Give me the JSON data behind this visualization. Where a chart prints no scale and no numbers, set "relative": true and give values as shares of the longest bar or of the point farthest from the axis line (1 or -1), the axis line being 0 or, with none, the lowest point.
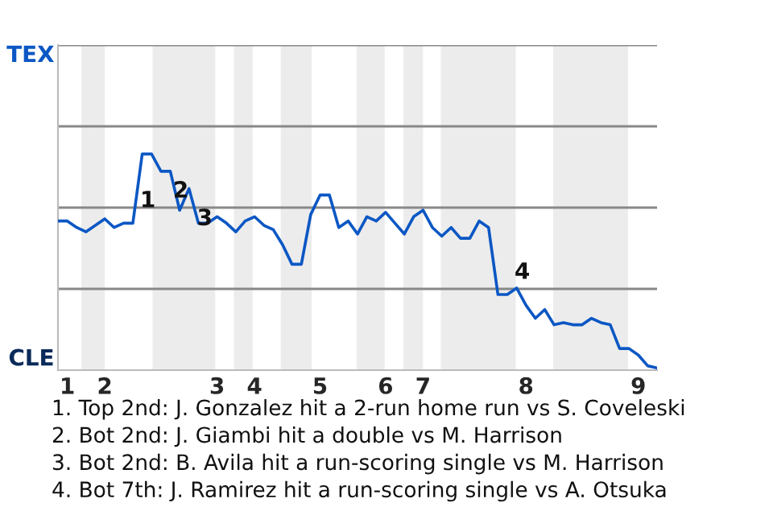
{
  "chart_data": {
    "type": "line",
    "relative": true,
    "categories": [
      null,
      "1",
      null,
      null,
      null,
      "2",
      null,
      null,
      null,
      null,
      null,
      null,
      null,
      null,
      null,
      null,
      null,
      "3",
      null,
      null,
      null,
      "4",
      null,
      null,
      null,
      null,
      null,
      null,
      "5",
      null,
      null,
      null,
      null,
      null,
      null,
      "6",
      null,
      null,
      null,
      "7",
      null,
      null,
      null,
      null,
      null,
      null,
      null,
      null,
      null,
      null,
      "8",
      null,
      null,
      null,
      null,
      null,
      null,
      null,
      null,
      null,
      null,
      null,
      "9",
      null,
      null
    ],
    "series": [
      {
        "color": "#0b57c4",
        "values": [
          0.69,
          0.69,
          0.66,
          0.64,
          0.67,
          0.7,
          0.66,
          0.68,
          0.68,
          1,
          1,
          0.92,
          0.92,
          0.74,
          0.84,
          0.68,
          0.68,
          0.71,
          0.68,
          0.64,
          0.69,
          0.71,
          0.67,
          0.65,
          0.58,
          0.49,
          0.49,
          0.72,
          0.81,
          0.81,
          0.66,
          0.69,
          0.63,
          0.71,
          0.69,
          0.73,
          0.68,
          0.63,
          0.71,
          0.74,
          0.66,
          0.62,
          0.66,
          0.61,
          0.61,
          0.69,
          0.66,
          0.35,
          0.35,
          0.38,
          0.3,
          0.24,
          0.28,
          0.21,
          0.22,
          0.21,
          0.21,
          0.24,
          0.22,
          0.21,
          0.1,
          0.1,
          0.07,
          0.02,
          0.01
        ]
      }
    ],
    "ref_lines": [
      {
        "axis": "y",
        "value": 0.376,
        "color": "#888888"
      },
      {
        "axis": "y",
        "value": 0.752,
        "color": "#888888"
      },
      {
        "axis": "y",
        "value": 1.128,
        "color": "#888888"
      },
      {
        "axis": "y",
        "value": 1.504,
        "color": "#888888"
      }
    ],
    "annotations": [
      "TEX",
      "CLE",
      "1",
      "2",
      "3",
      "4",
      "1. Top 2nd: J. Gonzalez hit a 2-run home run vs S. Coveleski",
      "2. Bot 2nd: J. Giambi hit a double vs M. Harrison",
      "3. Bot 2nd: B. Avila hit a run-scoring single vs M. Harrison",
      "4. Bot 7th: J. Ramirez hit a run-scoring single vs A. Otsuka"
    ]
  }
}
